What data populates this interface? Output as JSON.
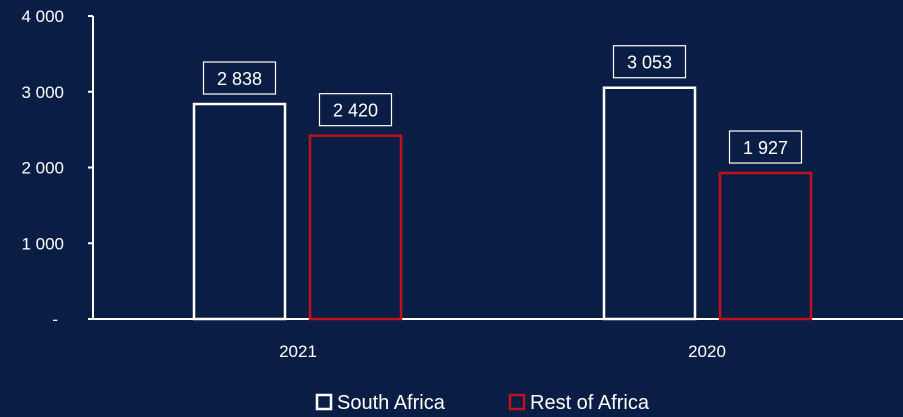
{
  "chart_data": {
    "type": "bar",
    "categories": [
      "2021",
      "2020"
    ],
    "series": [
      {
        "name": "South Africa",
        "values": [
          2838,
          3053
        ],
        "color": "#ffffff"
      },
      {
        "name": "Rest of Africa",
        "values": [
          2420,
          1927
        ],
        "color": "#c0101a"
      }
    ],
    "data_labels": [
      [
        "2 838",
        "3 053"
      ],
      [
        "2 420",
        "1 927"
      ]
    ],
    "ylim": [
      0,
      4000
    ],
    "yticks": [
      0,
      1000,
      2000,
      3000,
      4000
    ],
    "ytick_labels": [
      "-",
      "1 000",
      "2 000",
      "3 000",
      "4 000"
    ],
    "xlabel": "",
    "ylabel": "",
    "title": "",
    "grid": false,
    "legend_position": "bottom-center",
    "background_color": "#0a1e45",
    "axis_color": "#ffffff"
  }
}
